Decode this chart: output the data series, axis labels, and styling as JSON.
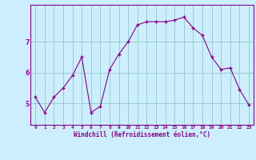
{
  "x": [
    0,
    1,
    2,
    3,
    4,
    5,
    6,
    7,
    8,
    9,
    10,
    11,
    12,
    13,
    14,
    15,
    16,
    17,
    18,
    19,
    20,
    21,
    22,
    23
  ],
  "y": [
    5.2,
    4.7,
    5.2,
    5.5,
    5.9,
    6.5,
    4.7,
    4.9,
    6.1,
    6.6,
    7.0,
    7.55,
    7.65,
    7.65,
    7.65,
    7.7,
    7.8,
    7.45,
    7.2,
    6.5,
    6.1,
    6.15,
    5.45,
    4.95
  ],
  "line_color": "#880088",
  "marker": "+",
  "marker_size": 3,
  "bg_color": "#cceeff",
  "grid_color": "#99cccc",
  "xlabel": "Windchill (Refroidissement éolien,°C)",
  "tick_color": "#880088",
  "yticks": [
    5,
    6,
    7
  ],
  "ylim": [
    4.3,
    8.2
  ],
  "xlim": [
    -0.5,
    23.5
  ],
  "figsize": [
    3.2,
    2.0
  ],
  "dpi": 100
}
